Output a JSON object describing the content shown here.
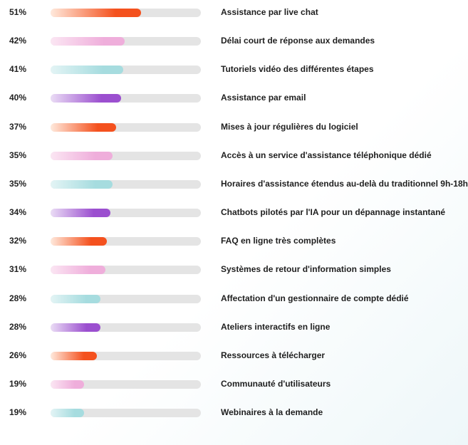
{
  "chart_data": {
    "type": "bar",
    "orientation": "horizontal",
    "xlim": [
      0,
      85
    ],
    "grid": false,
    "legend": "none",
    "categories": [
      "Assistance par live chat",
      "Délai court de réponse aux demandes",
      "Tutoriels vidéo des différentes étapes",
      "Assistance par email",
      "Mises à jour régulières du logiciel",
      "Accès à un service d'assistance téléphonique dédié",
      "Horaires d'assistance étendus au-delà du traditionnel 9h-18h",
      "Chatbots pilotés par l'IA pour un dépannage instantané",
      "FAQ en ligne très complètes",
      "Systèmes de retour d'information simples",
      "Affectation d'un gestionnaire de compte dédié",
      "Ateliers interactifs en ligne",
      "Ressources à télécharger",
      "Communauté d'utilisateurs",
      "Webinaires à la demande"
    ],
    "values": [
      51,
      42,
      41,
      40,
      37,
      35,
      35,
      34,
      32,
      31,
      28,
      28,
      26,
      19,
      19
    ],
    "value_labels": [
      "51%",
      "42%",
      "41%",
      "40%",
      "37%",
      "35%",
      "35%",
      "34%",
      "32%",
      "31%",
      "28%",
      "28%",
      "26%",
      "19%",
      "19%"
    ],
    "bar_styles": [
      "orange",
      "pink",
      "teal",
      "purple",
      "orange",
      "pink",
      "teal",
      "purple",
      "orange",
      "pink",
      "teal",
      "purple",
      "orange",
      "pink",
      "teal"
    ],
    "colors": {
      "track": "#e4e4e4",
      "orange": [
        "#ffe9dc",
        "#f4511e"
      ],
      "pink": [
        "#fbe6f3",
        "#efaedb"
      ],
      "teal": [
        "#e3f4f5",
        "#a6dcdf"
      ],
      "purple": [
        "#eadcf5",
        "#9b4fcf"
      ]
    }
  }
}
